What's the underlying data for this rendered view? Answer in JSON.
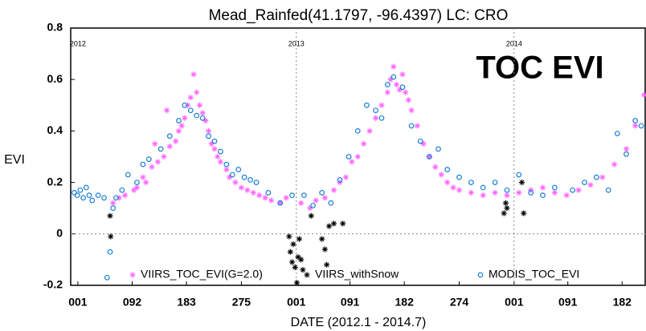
{
  "chart_data": {
    "type": "scatter",
    "title": "Mead_Rainfed(41.1797, -96.4397) LC: CRO",
    "annotation": "TOC EVI",
    "annotation_color": "#ee1c1c",
    "x_label": "DATE (2012.1 - 2014.7)",
    "y_label": "EVI",
    "xlim": [
      -11,
      953
    ],
    "ylim": [
      -0.2,
      0.8
    ],
    "xticks": [
      {
        "value": 1,
        "label": "001"
      },
      {
        "value": 92,
        "label": "092"
      },
      {
        "value": 183,
        "label": "183"
      },
      {
        "value": 275,
        "label": "275"
      },
      {
        "value": 367,
        "label": "001"
      },
      {
        "value": 457,
        "label": "091"
      },
      {
        "value": 548,
        "label": "182"
      },
      {
        "value": 640,
        "label": "274"
      },
      {
        "value": 732,
        "label": "001"
      },
      {
        "value": 822,
        "label": "091"
      },
      {
        "value": 913,
        "label": "182"
      }
    ],
    "yticks": [
      -0.2,
      0,
      0.2,
      0.4,
      0.6,
      0.8
    ],
    "year_marks": [
      {
        "value": 1,
        "label": "2012"
      },
      {
        "value": 367,
        "label": "2013"
      },
      {
        "value": 732,
        "label": "2014"
      }
    ],
    "series": [
      {
        "name": "VIIRS_TOC_EVI(G=2.0)",
        "color": "#ff66ff",
        "marker": "asterisk",
        "x": [
          60,
          70,
          80,
          95,
          100,
          110,
          115,
          125,
          130,
          135,
          145,
          150,
          155,
          165,
          170,
          175,
          180,
          185,
          190,
          195,
          200,
          205,
          210,
          215,
          220,
          225,
          230,
          235,
          240,
          250,
          255,
          265,
          275,
          285,
          295,
          305,
          315,
          325,
          340,
          350,
          375,
          390,
          400,
          415,
          430,
          440,
          450,
          460,
          470,
          480,
          490,
          500,
          510,
          520,
          525,
          530,
          535,
          540,
          545,
          550,
          555,
          560,
          570,
          580,
          590,
          600,
          610,
          620,
          630,
          640,
          660,
          680,
          700,
          720,
          740,
          760,
          780,
          800,
          820,
          840,
          860,
          880,
          900,
          920,
          935,
          950
        ],
        "values": [
          0.12,
          0.14,
          0.15,
          0.17,
          0.18,
          0.22,
          0.2,
          0.26,
          0.35,
          0.28,
          0.3,
          0.48,
          0.34,
          0.36,
          0.4,
          0.42,
          0.45,
          0.5,
          0.53,
          0.62,
          0.55,
          0.5,
          0.47,
          0.44,
          0.4,
          0.35,
          0.33,
          0.3,
          0.28,
          0.25,
          0.22,
          0.2,
          0.18,
          0.17,
          0.16,
          0.15,
          0.14,
          0.13,
          0.12,
          0.14,
          0.12,
          0.1,
          0.13,
          0.14,
          0.17,
          0.2,
          0.22,
          0.28,
          0.3,
          0.35,
          0.4,
          0.45,
          0.5,
          0.55,
          0.6,
          0.65,
          0.58,
          0.56,
          0.62,
          0.55,
          0.52,
          0.48,
          0.42,
          0.35,
          0.3,
          0.26,
          0.23,
          0.2,
          0.18,
          0.17,
          0.16,
          0.15,
          0.16,
          0.15,
          0.16,
          0.17,
          0.18,
          0.16,
          0.15,
          0.17,
          0.19,
          0.22,
          0.27,
          0.33,
          0.42,
          0.54
        ]
      },
      {
        "name": "VIIRS_withSnow",
        "color": "#000000",
        "marker": "asterisk",
        "x": [
          55,
          56,
          355,
          357,
          360,
          362,
          365,
          368,
          370,
          372,
          375,
          378,
          392,
          410,
          415,
          418,
          422,
          430,
          445,
          715,
          718,
          720,
          745,
          748
        ],
        "values": [
          0.07,
          -0.01,
          -0.01,
          -0.07,
          -0.11,
          -0.04,
          -0.13,
          -0.19,
          -0.09,
          -0.02,
          -0.1,
          -0.14,
          0.07,
          -0.02,
          -0.06,
          -0.12,
          0.03,
          0.04,
          0.04,
          0.08,
          0.12,
          0.1,
          0.2,
          0.08
        ]
      },
      {
        "name": "MODIS_TOC_EVI",
        "color": "#1a7fd6",
        "marker": "circle",
        "x": [
          -5,
          0,
          5,
          10,
          15,
          20,
          25,
          35,
          45,
          50,
          55,
          60,
          65,
          75,
          85,
          100,
          110,
          120,
          140,
          155,
          170,
          180,
          190,
          200,
          210,
          220,
          230,
          240,
          250,
          260,
          270,
          280,
          290,
          300,
          320,
          340,
          360,
          380,
          395,
          410,
          425,
          440,
          455,
          470,
          485,
          500,
          510,
          520,
          530,
          545,
          560,
          575,
          590,
          605,
          620,
          640,
          660,
          680,
          700,
          720,
          740,
          760,
          780,
          800,
          830,
          850,
          870,
          890,
          905,
          920,
          935,
          945
        ],
        "values": [
          0.16,
          0.15,
          0.17,
          0.14,
          0.18,
          0.15,
          0.13,
          0.15,
          0.14,
          -0.17,
          -0.07,
          0.1,
          0.14,
          0.17,
          0.23,
          0.2,
          0.27,
          0.29,
          0.33,
          0.38,
          0.44,
          0.5,
          0.48,
          0.46,
          0.45,
          0.38,
          0.36,
          0.32,
          0.27,
          0.23,
          0.25,
          0.22,
          0.21,
          0.2,
          0.16,
          0.12,
          0.15,
          0.15,
          0.11,
          0.16,
          0.12,
          0.21,
          0.3,
          0.4,
          0.5,
          0.48,
          0.45,
          0.58,
          0.61,
          0.57,
          0.42,
          0.36,
          0.3,
          0.33,
          0.25,
          0.22,
          0.2,
          0.18,
          0.2,
          0.17,
          0.23,
          0.16,
          0.15,
          0.18,
          0.17,
          0.2,
          0.22,
          0.17,
          0.39,
          0.31,
          0.44,
          0.42
        ]
      }
    ]
  }
}
